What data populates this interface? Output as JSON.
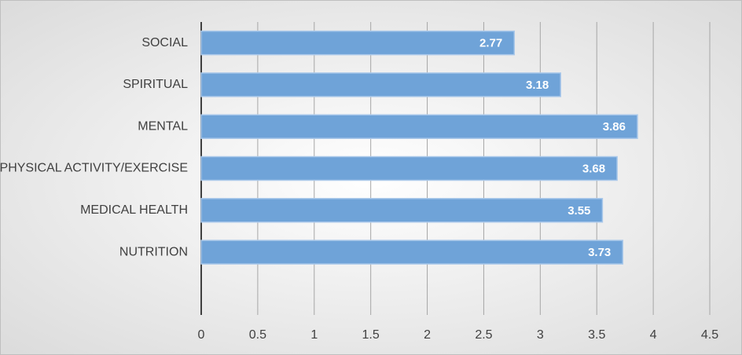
{
  "chart_data": {
    "type": "bar",
    "orientation": "horizontal",
    "categories": [
      "SOCIAL",
      "SPIRITUAL",
      "MENTAL",
      "PHYSICAL ACTIVITY/EXERCISE",
      "MEDICAL HEALTH",
      "NUTRITION",
      null
    ],
    "values": [
      2.77,
      3.18,
      3.86,
      3.68,
      3.55,
      3.73,
      null
    ],
    "color": "#6fa3d8",
    "xlim": [
      0,
      4.5
    ],
    "xticks": [
      0,
      0.5,
      1,
      1.5,
      2,
      2.5,
      3,
      3.5,
      4,
      4.5
    ],
    "grid": true
  }
}
